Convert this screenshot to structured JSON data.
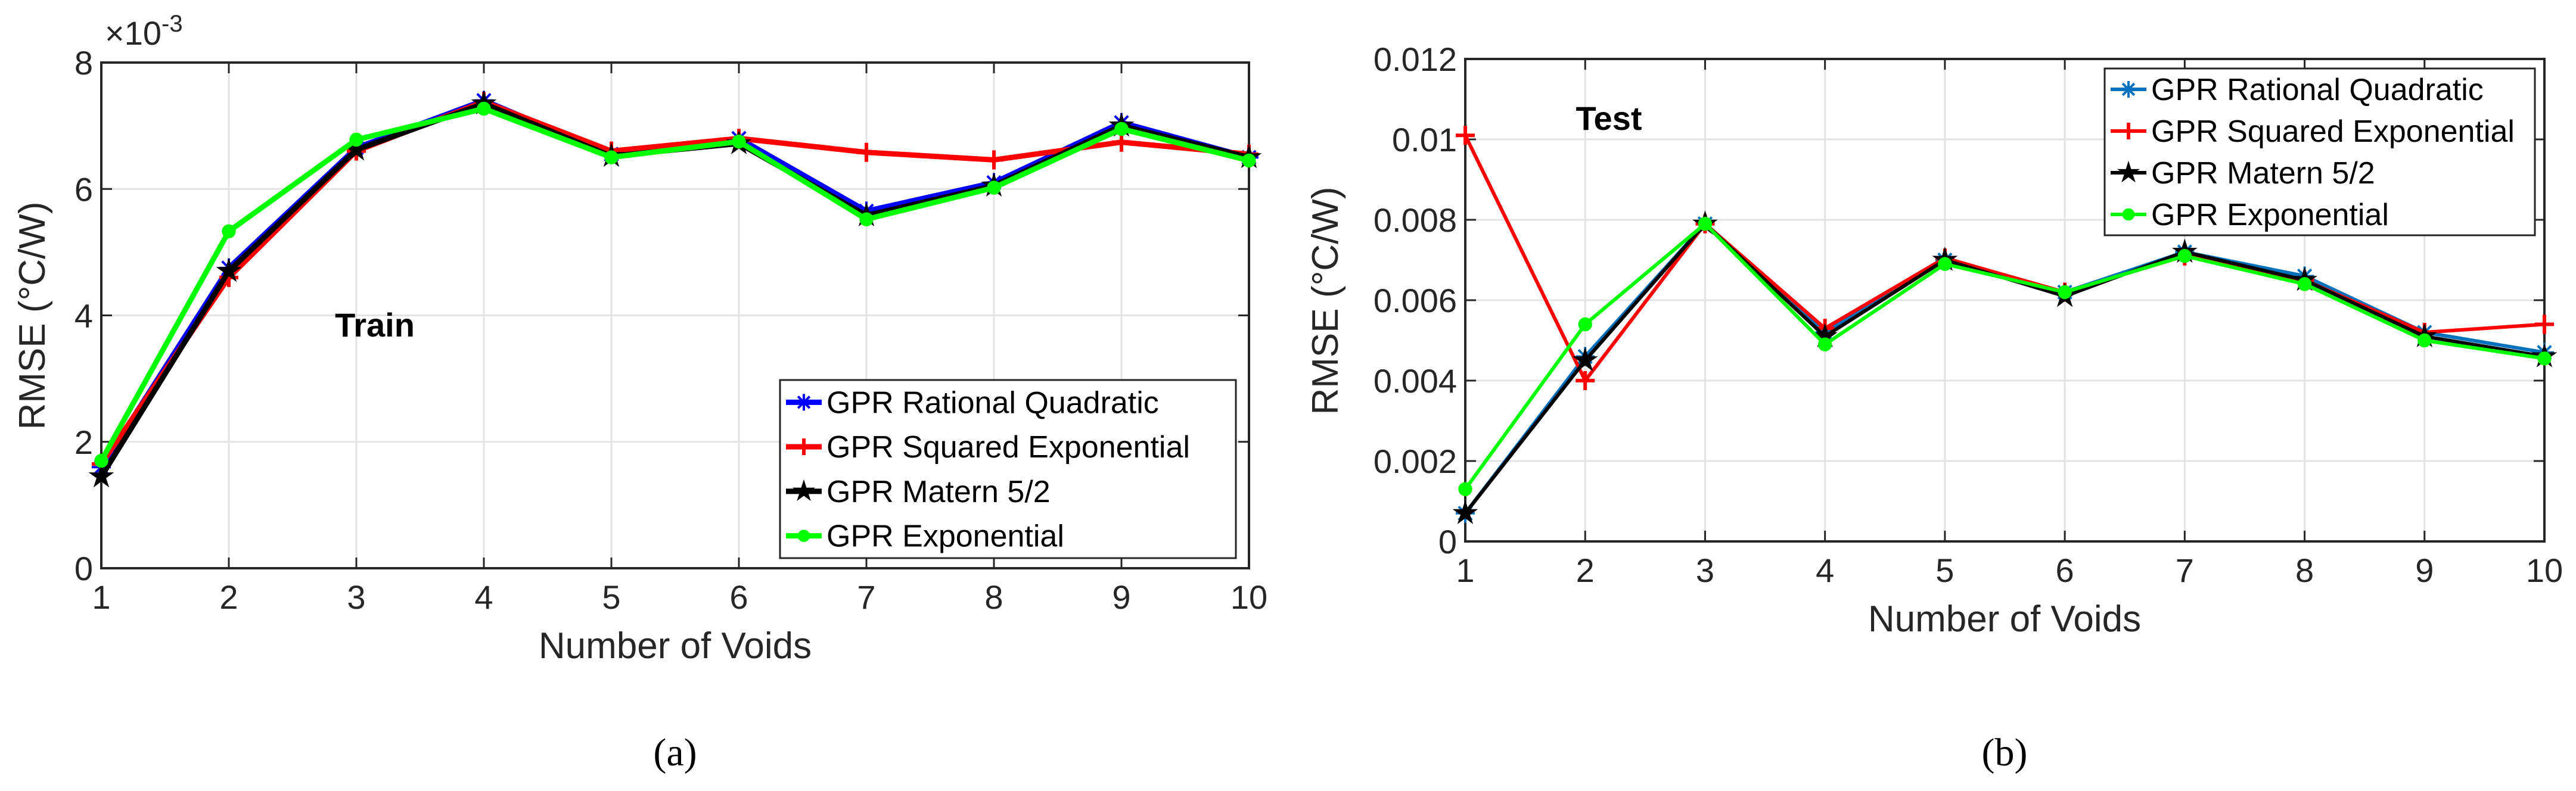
{
  "chart_data": [
    {
      "type": "line",
      "panel_caption": "(a)",
      "annotation": "Train",
      "xlabel": "Number of Voids",
      "ylabel": "RMSE (°C/W)",
      "y_exponent_label": "×10",
      "y_exponent": "-3",
      "x": [
        1,
        2,
        3,
        4,
        5,
        6,
        7,
        8,
        9,
        10
      ],
      "xlim": [
        1,
        10
      ],
      "ylim": [
        0,
        8
      ],
      "yticks": [
        "0",
        "2",
        "4",
        "6",
        "8"
      ],
      "xticks": [
        "1",
        "2",
        "3",
        "4",
        "5",
        "6",
        "7",
        "8",
        "9",
        "10"
      ],
      "grid": true,
      "legend_position": "bottom-right",
      "series": [
        {
          "name": "GPR Rational Quadratic",
          "color": "#0000FF",
          "marker": "asterisk",
          "values": [
            1.6,
            4.75,
            6.65,
            7.4,
            6.55,
            6.8,
            5.65,
            6.1,
            7.05,
            6.5
          ]
        },
        {
          "name": "GPR Squared Exponential",
          "color": "#FF0000",
          "marker": "plus",
          "values": [
            1.65,
            4.6,
            6.6,
            7.38,
            6.6,
            6.8,
            6.58,
            6.46,
            6.74,
            6.55
          ]
        },
        {
          "name": "GPR Matern 5/2",
          "color": "#000000",
          "marker": "star",
          "values": [
            1.45,
            4.7,
            6.62,
            7.35,
            6.52,
            6.72,
            5.58,
            6.05,
            7.0,
            6.5
          ]
        },
        {
          "name": "GPR Exponential",
          "color": "#00FF00",
          "marker": "circle",
          "values": [
            1.7,
            5.33,
            6.78,
            7.27,
            6.5,
            6.75,
            5.52,
            6.02,
            6.95,
            6.45
          ]
        }
      ]
    },
    {
      "type": "line",
      "panel_caption": "(b)",
      "annotation": "Test",
      "xlabel": "Number of Voids",
      "ylabel": "RMSE (°C/W)",
      "x": [
        1,
        2,
        3,
        4,
        5,
        6,
        7,
        8,
        9,
        10
      ],
      "xlim": [
        1,
        10
      ],
      "ylim": [
        0,
        0.012
      ],
      "yticks": [
        "0",
        "0.002",
        "0.004",
        "0.006",
        "0.008",
        "0.01",
        "0.012"
      ],
      "xticks": [
        "1",
        "2",
        "3",
        "4",
        "5",
        "6",
        "7",
        "8",
        "9",
        "10"
      ],
      "grid": true,
      "legend_position": "top-right",
      "series": [
        {
          "name": "GPR Rational Quadratic",
          "color": "#0072BD",
          "marker": "asterisk",
          "values": [
            0.0007,
            0.0046,
            0.0079,
            0.0052,
            0.007,
            0.0062,
            0.0072,
            0.0066,
            0.0052,
            0.0047
          ]
        },
        {
          "name": "GPR Squared Exponential",
          "color": "#FF0000",
          "marker": "plus",
          "values": [
            0.0101,
            0.004,
            0.0079,
            0.0053,
            0.00705,
            0.0062,
            0.0071,
            0.0065,
            0.0052,
            0.0054
          ]
        },
        {
          "name": "GPR Matern 5/2",
          "color": "#000000",
          "marker": "star",
          "values": [
            0.0007,
            0.0045,
            0.0079,
            0.0051,
            0.007,
            0.0061,
            0.0072,
            0.0065,
            0.0051,
            0.0046
          ]
        },
        {
          "name": "GPR Exponential",
          "color": "#00FF00",
          "marker": "circle",
          "values": [
            0.0013,
            0.0054,
            0.0079,
            0.0049,
            0.0069,
            0.0062,
            0.0071,
            0.0064,
            0.005,
            0.00455
          ]
        }
      ]
    }
  ]
}
